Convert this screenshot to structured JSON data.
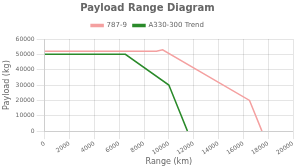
{
  "chart_data": {
    "type": "line",
    "title": "Payload Range Diagram",
    "xlabel": "Range (km)",
    "ylabel": "Payload (kg)",
    "series": [
      {
        "name": "787-9",
        "color": "#f4a0a0",
        "x": [
          0,
          9000,
          9500,
          16500,
          17500
        ],
        "values": [
          52000,
          52000,
          53000,
          20000,
          0
        ]
      },
      {
        "name": "A330-300 Trend",
        "color": "#2a8a2a",
        "x": [
          0,
          6500,
          10000,
          11500
        ],
        "values": [
          50000,
          50000,
          30000,
          0
        ]
      }
    ],
    "xlim": [
      0,
      20000
    ],
    "ylim": [
      0,
      60000
    ],
    "xticks": [
      0,
      2000,
      4000,
      6000,
      8000,
      10000,
      12000,
      14000,
      16000,
      18000,
      20000
    ],
    "yticks": [
      0,
      10000,
      20000,
      30000,
      40000,
      50000,
      60000
    ],
    "grid": true,
    "legend": "top"
  }
}
